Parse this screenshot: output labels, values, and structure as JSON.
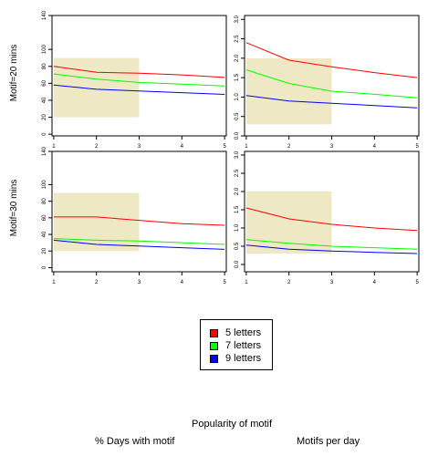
{
  "row_labels": [
    "Motif=20 mins",
    "Motif=30 mins"
  ],
  "footer": {
    "main": "Popularity of motif",
    "left": "% Days with motif",
    "right": "Motifs per day"
  },
  "legend": {
    "placement": "bottom-center",
    "entries": [
      {
        "label": "5 letters",
        "color": "#ff0000"
      },
      {
        "label": "7 letters",
        "color": "#00ff00"
      },
      {
        "label": "9 letters",
        "color": "#0000ff"
      }
    ]
  },
  "chart_data": [
    {
      "type": "line",
      "panel": "Motif=20 mins / % Days with motif",
      "x": [
        1,
        2,
        3,
        4,
        5
      ],
      "xticks": [
        1,
        2,
        3,
        4,
        5
      ],
      "xlim": [
        0.96,
        5.04
      ],
      "ylim": [
        -2,
        140
      ],
      "yticks": [
        0,
        20,
        40,
        60,
        80,
        100,
        140
      ],
      "shaded_region": {
        "x": [
          1,
          3
        ],
        "y": [
          20,
          90
        ],
        "color": "#eee8c4"
      },
      "series": [
        {
          "name": "5 letters",
          "color": "#ff0000",
          "values": [
            80,
            73,
            72,
            70,
            67
          ]
        },
        {
          "name": "7 letters",
          "color": "#00ff00",
          "values": [
            71,
            65,
            61,
            59,
            57
          ]
        },
        {
          "name": "9 letters",
          "color": "#0000ff",
          "values": [
            58,
            53,
            51,
            49,
            47
          ]
        }
      ]
    },
    {
      "type": "line",
      "panel": "Motif=20 mins / Motifs per day",
      "x": [
        1,
        2,
        3,
        4,
        5
      ],
      "xticks": [
        1,
        2,
        3,
        4,
        5
      ],
      "xlim": [
        0.96,
        5.04
      ],
      "ylim": [
        0,
        3.1
      ],
      "yticks": [
        0.0,
        0.5,
        1.0,
        1.5,
        2.0,
        2.5,
        3.0
      ],
      "shaded_region": {
        "x": [
          1,
          3
        ],
        "y": [
          0.3,
          2.0
        ],
        "color": "#eee8c4"
      },
      "series": [
        {
          "name": "5 letters",
          "color": "#ff0000",
          "values": [
            2.4,
            1.95,
            1.78,
            1.63,
            1.5
          ]
        },
        {
          "name": "7 letters",
          "color": "#00ff00",
          "values": [
            1.7,
            1.35,
            1.15,
            1.07,
            0.98
          ]
        },
        {
          "name": "9 letters",
          "color": "#0000ff",
          "values": [
            1.04,
            0.9,
            0.84,
            0.78,
            0.72
          ]
        }
      ]
    },
    {
      "type": "line",
      "panel": "Motif=30 mins / % Days with motif",
      "x": [
        1,
        2,
        3,
        4,
        5
      ],
      "xticks": [
        1,
        2,
        3,
        4,
        5
      ],
      "xlim": [
        0.96,
        5.04
      ],
      "ylim": [
        -5,
        140
      ],
      "yticks": [
        0,
        20,
        40,
        60,
        80,
        100,
        140
      ],
      "shaded_region": {
        "x": [
          1,
          3
        ],
        "y": [
          20,
          90
        ],
        "color": "#eee8c4"
      },
      "series": [
        {
          "name": "5 letters",
          "color": "#ff0000",
          "values": [
            61,
            61,
            57,
            53,
            51
          ]
        },
        {
          "name": "7 letters",
          "color": "#00ff00",
          "values": [
            35,
            33,
            32,
            30,
            28
          ]
        },
        {
          "name": "9 letters",
          "color": "#0000ff",
          "values": [
            33,
            28,
            26,
            24,
            22
          ]
        }
      ]
    },
    {
      "type": "line",
      "panel": "Motif=30 mins / Motifs per day",
      "x": [
        1,
        2,
        3,
        4,
        5
      ],
      "xticks": [
        1,
        2,
        3,
        4,
        5
      ],
      "xlim": [
        0.96,
        5.04
      ],
      "ylim": [
        -0.2,
        3.1
      ],
      "yticks": [
        0.0,
        0.5,
        1.0,
        1.5,
        2.0,
        2.5,
        3.0
      ],
      "shaded_region": {
        "x": [
          1,
          3
        ],
        "y": [
          0.3,
          2.0
        ],
        "color": "#eee8c4"
      },
      "series": [
        {
          "name": "5 letters",
          "color": "#ff0000",
          "values": [
            1.55,
            1.25,
            1.1,
            1.0,
            0.93
          ]
        },
        {
          "name": "7 letters",
          "color": "#00ff00",
          "values": [
            0.68,
            0.58,
            0.5,
            0.46,
            0.42
          ]
        },
        {
          "name": "9 letters",
          "color": "#0000ff",
          "values": [
            0.53,
            0.42,
            0.37,
            0.33,
            0.3
          ]
        }
      ]
    }
  ]
}
